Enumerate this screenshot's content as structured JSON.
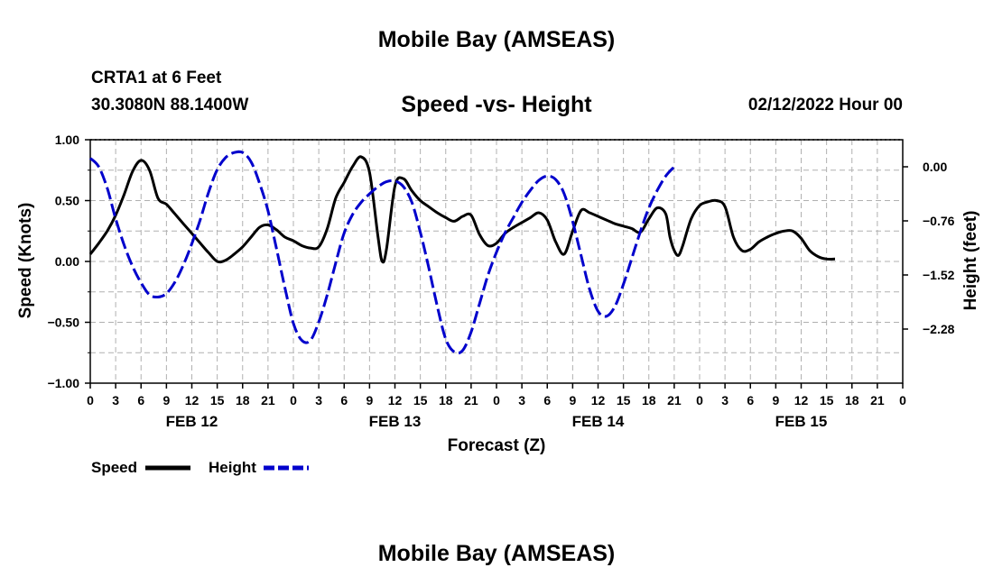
{
  "header": {
    "title": "Mobile Bay (AMSEAS)",
    "station": "CRTA1 at 6 Feet",
    "coords": "30.3080N  88.1400W",
    "subtitle": "Speed -vs- Height",
    "datetime": "02/12/2022 Hour 00",
    "footer_title": "Mobile Bay (AMSEAS)"
  },
  "legend": {
    "speed_label": "Speed",
    "height_label": "Height"
  },
  "chart_data": {
    "type": "line",
    "title": "Speed -vs- Height",
    "xlabel": "Forecast (Z)",
    "ylabel": "Speed (Knots)",
    "y2label": "Height (feet)",
    "x_range_hours": [
      0,
      96
    ],
    "ylim": [
      -1.0,
      1.0
    ],
    "y2lim": [
      -3.04,
      0.38
    ],
    "y_ticks": [
      "1.00",
      "0.50",
      "0.00",
      "−0.50",
      "−1.00"
    ],
    "y_tick_values": [
      1.0,
      0.5,
      0.0,
      -0.5,
      -1.0
    ],
    "y2_ticks": [
      "0.00",
      "−0.76",
      "−1.52",
      "−2.28"
    ],
    "y2_tick_values": [
      0.0,
      -0.76,
      -1.52,
      -2.28
    ],
    "x_tick_labels": [
      "0",
      "3",
      "6",
      "9",
      "12",
      "15",
      "18",
      "21",
      "0",
      "3",
      "6",
      "9",
      "12",
      "15",
      "18",
      "21",
      "0",
      "3",
      "6",
      "9",
      "12",
      "15",
      "18",
      "21",
      "0",
      "3",
      "6",
      "9",
      "12",
      "15",
      "18",
      "21",
      "0"
    ],
    "day_labels": [
      {
        "label": "FEB 12",
        "hour": 12
      },
      {
        "label": "FEB 13",
        "hour": 36
      },
      {
        "label": "FEB 14",
        "hour": 60
      },
      {
        "label": "FEB 15",
        "hour": 84
      }
    ],
    "grid": true,
    "series": [
      {
        "name": "Speed",
        "axis": "left",
        "color": "#000000",
        "style": "solid",
        "points": [
          [
            0,
            0.06
          ],
          [
            1,
            0.15
          ],
          [
            2,
            0.25
          ],
          [
            3,
            0.38
          ],
          [
            4,
            0.55
          ],
          [
            5,
            0.74
          ],
          [
            6,
            0.83
          ],
          [
            7,
            0.75
          ],
          [
            8,
            0.52
          ],
          [
            9,
            0.47
          ],
          [
            10,
            0.39
          ],
          [
            11,
            0.31
          ],
          [
            12,
            0.23
          ],
          [
            13,
            0.15
          ],
          [
            14,
            0.07
          ],
          [
            15,
            0.0
          ],
          [
            16,
            0.01
          ],
          [
            17,
            0.06
          ],
          [
            18,
            0.12
          ],
          [
            19,
            0.2
          ],
          [
            20,
            0.28
          ],
          [
            21,
            0.3
          ],
          [
            22,
            0.26
          ],
          [
            23,
            0.2
          ],
          [
            24,
            0.17
          ],
          [
            25,
            0.13
          ],
          [
            26,
            0.11
          ],
          [
            27,
            0.12
          ],
          [
            28,
            0.27
          ],
          [
            29,
            0.52
          ],
          [
            30,
            0.65
          ],
          [
            31,
            0.78
          ],
          [
            32,
            0.86
          ],
          [
            33,
            0.73
          ],
          [
            34,
            0.2
          ],
          [
            34.5,
            0.0
          ],
          [
            35,
            0.1
          ],
          [
            36,
            0.62
          ],
          [
            37,
            0.68
          ],
          [
            38,
            0.58
          ],
          [
            39,
            0.5
          ],
          [
            40,
            0.45
          ],
          [
            41,
            0.4
          ],
          [
            42,
            0.36
          ],
          [
            43,
            0.33
          ],
          [
            44,
            0.37
          ],
          [
            45,
            0.38
          ],
          [
            46,
            0.22
          ],
          [
            47,
            0.13
          ],
          [
            48,
            0.15
          ],
          [
            49,
            0.23
          ],
          [
            50,
            0.28
          ],
          [
            51,
            0.32
          ],
          [
            52,
            0.36
          ],
          [
            53,
            0.4
          ],
          [
            54,
            0.34
          ],
          [
            55,
            0.16
          ],
          [
            56,
            0.06
          ],
          [
            57,
            0.25
          ],
          [
            58,
            0.42
          ],
          [
            59,
            0.4
          ],
          [
            60,
            0.37
          ],
          [
            61,
            0.34
          ],
          [
            62,
            0.31
          ],
          [
            63,
            0.29
          ],
          [
            64,
            0.27
          ],
          [
            65,
            0.24
          ],
          [
            66,
            0.35
          ],
          [
            67,
            0.44
          ],
          [
            68,
            0.39
          ],
          [
            68.5,
            0.2
          ],
          [
            69,
            0.09
          ],
          [
            69.5,
            0.05
          ],
          [
            70,
            0.13
          ],
          [
            71,
            0.35
          ],
          [
            72,
            0.46
          ],
          [
            73,
            0.49
          ],
          [
            74,
            0.5
          ],
          [
            75,
            0.45
          ],
          [
            76,
            0.2
          ],
          [
            77,
            0.09
          ],
          [
            78,
            0.1
          ],
          [
            79,
            0.16
          ],
          [
            80,
            0.2
          ],
          [
            81,
            0.23
          ],
          [
            82,
            0.25
          ],
          [
            83,
            0.25
          ],
          [
            84,
            0.19
          ],
          [
            85,
            0.09
          ],
          [
            86,
            0.04
          ],
          [
            87,
            0.02
          ],
          [
            88,
            0.02
          ]
        ]
      },
      {
        "name": "Height",
        "axis": "right",
        "color": "#0000cc",
        "style": "dashed",
        "points": [
          [
            0,
            0.12
          ],
          [
            1,
            0.0
          ],
          [
            2,
            -0.3
          ],
          [
            3,
            -0.73
          ],
          [
            4,
            -1.1
          ],
          [
            5,
            -1.4
          ],
          [
            6,
            -1.63
          ],
          [
            7,
            -1.8
          ],
          [
            8,
            -1.83
          ],
          [
            9,
            -1.78
          ],
          [
            10,
            -1.62
          ],
          [
            11,
            -1.38
          ],
          [
            12,
            -1.08
          ],
          [
            13,
            -0.74
          ],
          [
            14,
            -0.35
          ],
          [
            15,
            -0.04
          ],
          [
            16,
            0.13
          ],
          [
            17,
            0.2
          ],
          [
            18,
            0.2
          ],
          [
            19,
            0.07
          ],
          [
            20,
            -0.23
          ],
          [
            21,
            -0.62
          ],
          [
            22,
            -1.15
          ],
          [
            23,
            -1.7
          ],
          [
            24,
            -2.2
          ],
          [
            25,
            -2.44
          ],
          [
            26,
            -2.44
          ],
          [
            27,
            -2.18
          ],
          [
            28,
            -1.8
          ],
          [
            29,
            -1.35
          ],
          [
            30,
            -0.93
          ],
          [
            31,
            -0.67
          ],
          [
            32,
            -0.5
          ],
          [
            33,
            -0.38
          ],
          [
            34,
            -0.28
          ],
          [
            35,
            -0.21
          ],
          [
            36,
            -0.2
          ],
          [
            37,
            -0.28
          ],
          [
            38,
            -0.5
          ],
          [
            39,
            -0.92
          ],
          [
            40,
            -1.42
          ],
          [
            41,
            -1.96
          ],
          [
            42,
            -2.42
          ],
          [
            43,
            -2.6
          ],
          [
            44,
            -2.58
          ],
          [
            45,
            -2.32
          ],
          [
            46,
            -1.92
          ],
          [
            47,
            -1.52
          ],
          [
            48,
            -1.2
          ],
          [
            49,
            -0.93
          ],
          [
            50,
            -0.71
          ],
          [
            51,
            -0.5
          ],
          [
            52,
            -0.33
          ],
          [
            53,
            -0.19
          ],
          [
            54,
            -0.13
          ],
          [
            55,
            -0.18
          ],
          [
            56,
            -0.38
          ],
          [
            57,
            -0.77
          ],
          [
            58,
            -1.25
          ],
          [
            59,
            -1.72
          ],
          [
            60,
            -2.03
          ],
          [
            61,
            -2.1
          ],
          [
            62,
            -1.96
          ],
          [
            63,
            -1.65
          ],
          [
            64,
            -1.28
          ],
          [
            65,
            -0.91
          ],
          [
            66,
            -0.58
          ],
          [
            67,
            -0.33
          ],
          [
            68,
            -0.13
          ],
          [
            69,
            0.0
          ]
        ]
      }
    ]
  }
}
